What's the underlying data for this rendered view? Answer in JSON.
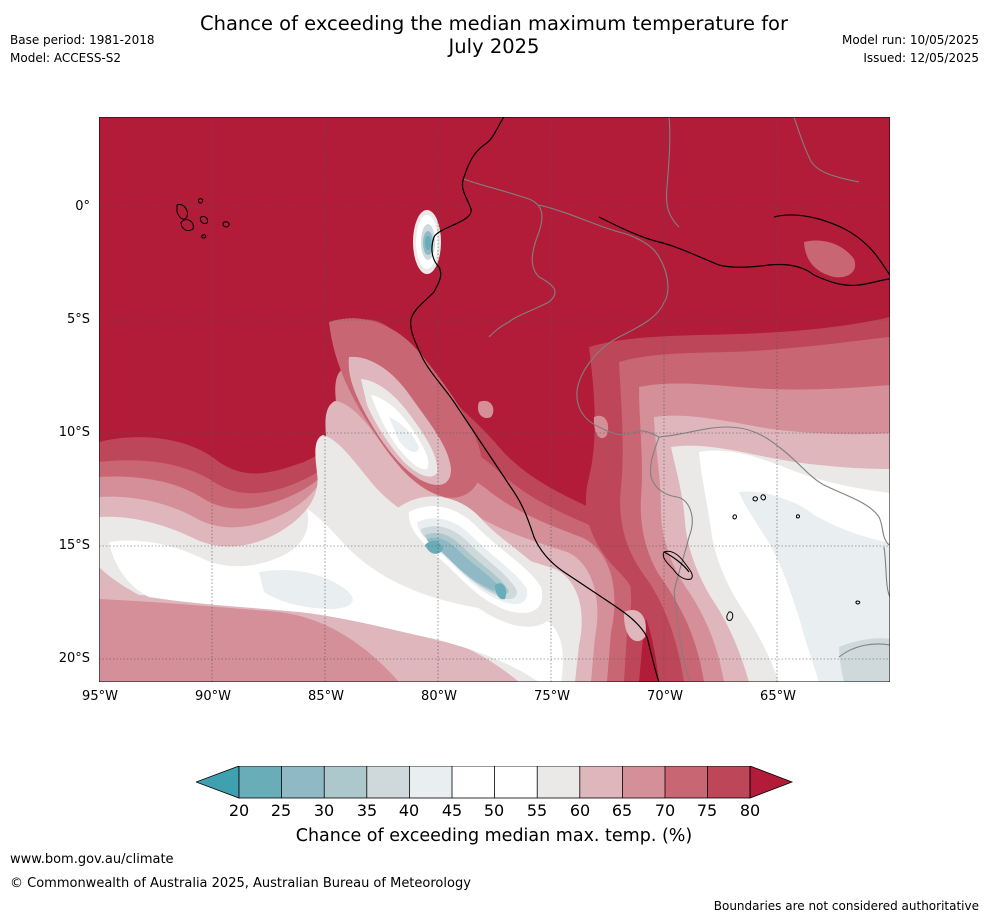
{
  "header": {
    "title_line1": "Chance of exceeding the median maximum temperature for",
    "title_line2": "July 2025",
    "base_period": "Base period: 1981-2018",
    "model": "Model: ACCESS-S2",
    "model_run": "Model run: 10/05/2025",
    "issued": "Issued: 12/05/2025"
  },
  "map": {
    "lat_labels": [
      "0°",
      "5°S",
      "10°S",
      "15°S",
      "20°S"
    ],
    "lon_labels": [
      "95°W",
      "90°W",
      "85°W",
      "80°W",
      "75°W",
      "70°W",
      "65°W"
    ],
    "colors": {
      "c_lt20": "#3fa0b0",
      "c20_25": "#69adb9",
      "c25_30": "#8fb9c4",
      "c30_35": "#adc8cd",
      "c35_40": "#cfd9dc",
      "c40_45": "#e9eef0",
      "c45_55": "#ffffff",
      "c55_60": "#ebe8e8",
      "c60_65": "#dfb6bc",
      "c65_70": "#d48f98",
      "c70_75": "#c96673",
      "c75_80": "#bd4758",
      "c_gt80": "#b21c39",
      "coast": "#000000",
      "border": "#808080"
    }
  },
  "colorbar": {
    "ticks": [
      "20",
      "25",
      "30",
      "35",
      "40",
      "45",
      "50",
      "55",
      "60",
      "65",
      "70",
      "75",
      "80"
    ],
    "title": "Chance of exceeding median max. temp. (%)"
  },
  "footer": {
    "url": "www.bom.gov.au/climate",
    "copyright": "© Commonwealth of Australia 2025, Australian Bureau of Meteorology",
    "disclaimer": "Boundaries are not considered authoritative"
  }
}
